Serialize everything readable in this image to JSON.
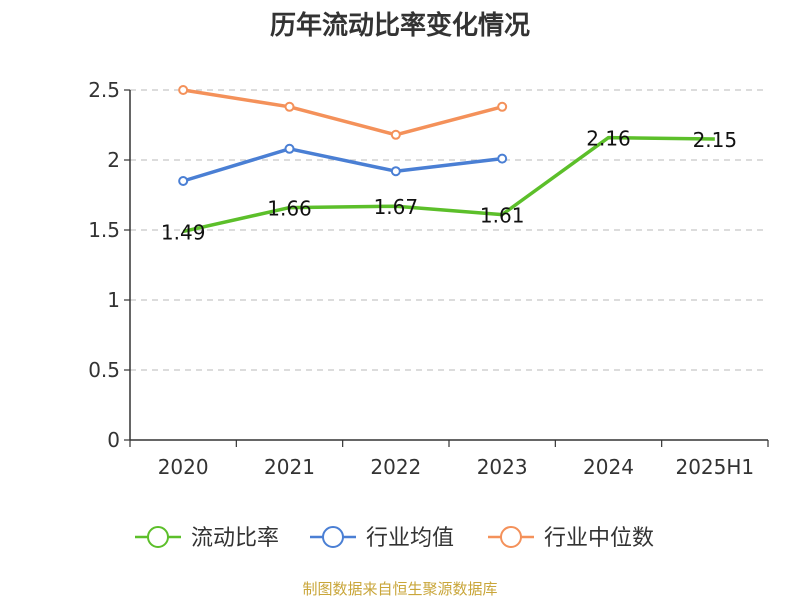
{
  "chart_data": {
    "type": "line",
    "title": "历年流动比率变化情况",
    "categories": [
      "2020",
      "2021",
      "2022",
      "2023",
      "2024",
      "2025H1"
    ],
    "ylim": [
      0,
      2.5
    ],
    "yticks": [
      "0",
      "0.5",
      "1",
      "1.5",
      "2",
      "2.5"
    ],
    "ytick_values": [
      0,
      0.5,
      1,
      1.5,
      2,
      2.5
    ],
    "grid": true,
    "legend_position": "bottom",
    "series": [
      {
        "name": "流动比率",
        "color": "#5cbf2a",
        "values": [
          1.49,
          1.66,
          1.67,
          1.61,
          2.16,
          2.15
        ],
        "labels": [
          "1.49",
          "1.66",
          "1.67",
          "1.61",
          "2.16",
          "2.15"
        ],
        "markers": false
      },
      {
        "name": "行业均值",
        "color": "#4a7fd4",
        "values": [
          1.85,
          2.08,
          1.92,
          2.01,
          null,
          null
        ],
        "markers": true
      },
      {
        "name": "行业中位数",
        "color": "#f4915a",
        "values": [
          2.5,
          2.38,
          2.18,
          2.38,
          null,
          null
        ],
        "markers": true
      }
    ]
  },
  "source": "制图数据来自恒生聚源数据库"
}
